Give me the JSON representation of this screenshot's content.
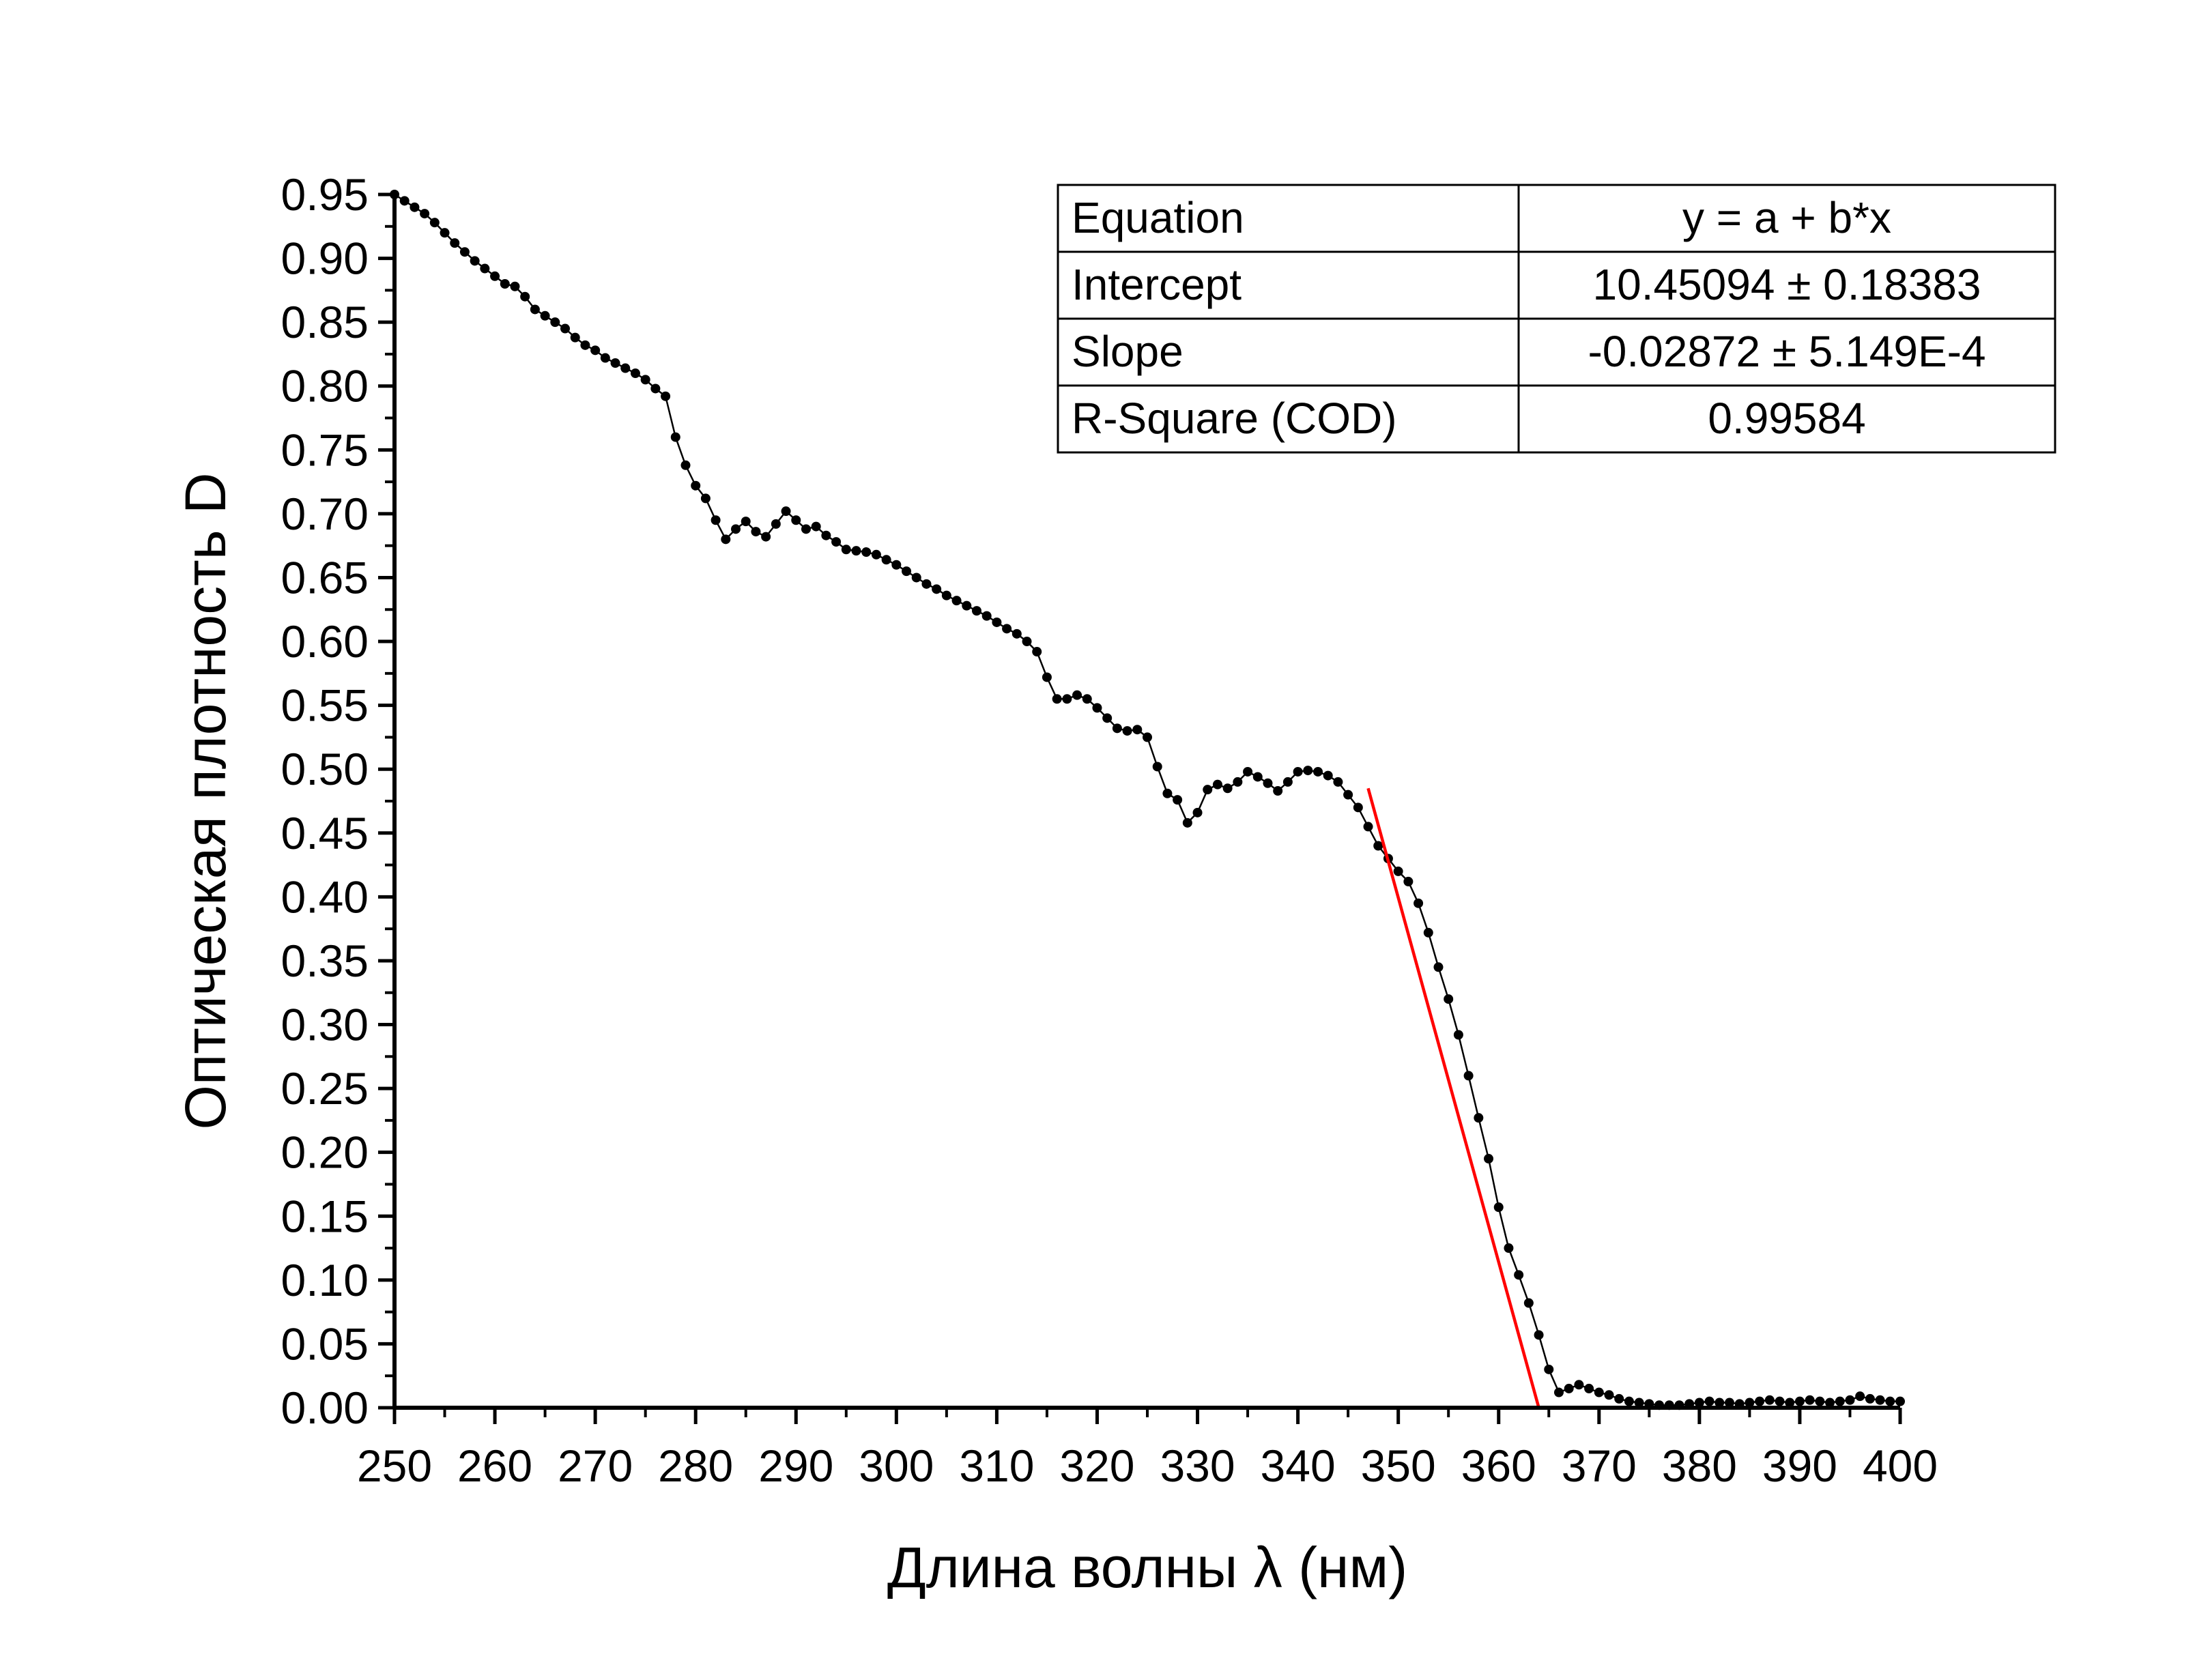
{
  "chart_data": {
    "type": "scatter",
    "xlabel": "Длина волны λ (нм)",
    "ylabel": "Оптическая плотность D",
    "xlim": [
      250,
      400
    ],
    "ylim": [
      0,
      0.95
    ],
    "x_ticks": [
      "250",
      "260",
      "270",
      "280",
      "290",
      "300",
      "310",
      "320",
      "330",
      "340",
      "350",
      "360",
      "370",
      "380",
      "390",
      "400"
    ],
    "y_ticks": [
      "0.00",
      "0.05",
      "0.10",
      "0.15",
      "0.20",
      "0.25",
      "0.30",
      "0.35",
      "0.40",
      "0.45",
      "0.50",
      "0.55",
      "0.60",
      "0.65",
      "0.70",
      "0.75",
      "0.80",
      "0.85",
      "0.90",
      "0.95"
    ],
    "series": [
      {
        "color": "#000000",
        "x": [
          250,
          251,
          252,
          253,
          254,
          255,
          256,
          257,
          258,
          259,
          260,
          261,
          262,
          263,
          264,
          265,
          266,
          267,
          268,
          269,
          270,
          271,
          272,
          273,
          274,
          275,
          276,
          277,
          278,
          279,
          280,
          281,
          282,
          283,
          284,
          285,
          286,
          287,
          288,
          289,
          290,
          291,
          292,
          293,
          294,
          295,
          296,
          297,
          298,
          299,
          300,
          301,
          302,
          303,
          304,
          305,
          306,
          307,
          308,
          309,
          310,
          311,
          312,
          313,
          314,
          315,
          316,
          317,
          318,
          319,
          320,
          321,
          322,
          323,
          324,
          325,
          326,
          327,
          328,
          329,
          330,
          331,
          332,
          333,
          334,
          335,
          336,
          337,
          338,
          339,
          340,
          341,
          342,
          343,
          344,
          345,
          346,
          347,
          348,
          349,
          350,
          351,
          352,
          353,
          354,
          355,
          356,
          357,
          358,
          359,
          360,
          361,
          362,
          363,
          364,
          365,
          366,
          367,
          368,
          369,
          370,
          371,
          372,
          373,
          374,
          375,
          376,
          377,
          378,
          379,
          380,
          381,
          382,
          383,
          384,
          385,
          386,
          387,
          388,
          389,
          390,
          391,
          392,
          393,
          394,
          395,
          396,
          397,
          398,
          399,
          400
        ],
        "y": [
          0.95,
          0.945,
          0.94,
          0.935,
          0.928,
          0.92,
          0.912,
          0.905,
          0.898,
          0.892,
          0.886,
          0.88,
          0.878,
          0.87,
          0.86,
          0.855,
          0.85,
          0.845,
          0.838,
          0.832,
          0.828,
          0.822,
          0.818,
          0.814,
          0.81,
          0.805,
          0.798,
          0.792,
          0.76,
          0.738,
          0.722,
          0.712,
          0.695,
          0.68,
          0.688,
          0.694,
          0.686,
          0.682,
          0.692,
          0.702,
          0.695,
          0.688,
          0.69,
          0.683,
          0.678,
          0.672,
          0.671,
          0.67,
          0.668,
          0.664,
          0.66,
          0.655,
          0.65,
          0.645,
          0.641,
          0.636,
          0.632,
          0.628,
          0.624,
          0.62,
          0.615,
          0.61,
          0.606,
          0.6,
          0.592,
          0.572,
          0.555,
          0.555,
          0.558,
          0.555,
          0.548,
          0.54,
          0.532,
          0.53,
          0.531,
          0.525,
          0.502,
          0.481,
          0.476,
          0.458,
          0.466,
          0.484,
          0.488,
          0.485,
          0.49,
          0.498,
          0.494,
          0.489,
          0.483,
          0.49,
          0.498,
          0.499,
          0.498,
          0.495,
          0.49,
          0.48,
          0.47,
          0.455,
          0.44,
          0.43,
          0.42,
          0.412,
          0.395,
          0.372,
          0.345,
          0.32,
          0.292,
          0.26,
          0.227,
          0.195,
          0.157,
          0.125,
          0.104,
          0.082,
          0.057,
          0.03,
          0.012,
          0.015,
          0.018,
          0.015,
          0.012,
          0.01,
          0.007,
          0.005,
          0.004,
          0.003,
          0.002,
          0.002,
          0.002,
          0.003,
          0.004,
          0.005,
          0.004,
          0.004,
          0.003,
          0.004,
          0.005,
          0.006,
          0.005,
          0.004,
          0.005,
          0.006,
          0.005,
          0.004,
          0.005,
          0.006,
          0.009,
          0.007,
          0.006,
          0.005,
          0.005
        ]
      },
      {
        "type": "line",
        "color": "#ff0000",
        "x": [
          347,
          364
        ],
        "y": [
          0.485,
          0.0
        ]
      }
    ],
    "fit_table": {
      "rows": [
        {
          "label": "Equation",
          "value": "y = a + b*x"
        },
        {
          "label": "Intercept",
          "value": "10.45094 ± 0.18383"
        },
        {
          "label": "Slope",
          "value": "-0.02872 ± 5.149E-4"
        },
        {
          "label": "R-Square (COD)",
          "value": "0.99584"
        }
      ]
    }
  }
}
